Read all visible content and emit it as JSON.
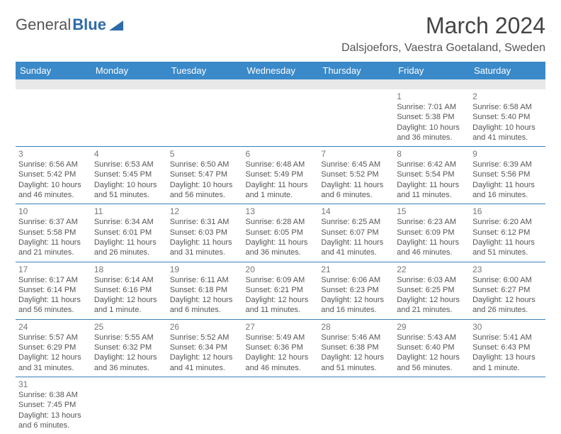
{
  "logo": {
    "text1": "General",
    "text2": "Blue"
  },
  "title": "March 2024",
  "location": "Dalsjoefors, Vaestra Goetaland, Sweden",
  "colors": {
    "header_bg": "#3a89c9",
    "header_text": "#ffffff",
    "cell_border": "#3a7fb5",
    "spacer_bg": "#e8e8e8",
    "daynum": "#777777",
    "info_text": "#555555",
    "logo_gray": "#555555",
    "logo_blue": "#2d6aa8"
  },
  "weekdays": [
    "Sunday",
    "Monday",
    "Tuesday",
    "Wednesday",
    "Thursday",
    "Friday",
    "Saturday"
  ],
  "weeks": [
    [
      null,
      null,
      null,
      null,
      null,
      {
        "n": "1",
        "sr": "7:01 AM",
        "ss": "5:38 PM",
        "dl": "10 hours and 36 minutes."
      },
      {
        "n": "2",
        "sr": "6:58 AM",
        "ss": "5:40 PM",
        "dl": "10 hours and 41 minutes."
      }
    ],
    [
      {
        "n": "3",
        "sr": "6:56 AM",
        "ss": "5:42 PM",
        "dl": "10 hours and 46 minutes."
      },
      {
        "n": "4",
        "sr": "6:53 AM",
        "ss": "5:45 PM",
        "dl": "10 hours and 51 minutes."
      },
      {
        "n": "5",
        "sr": "6:50 AM",
        "ss": "5:47 PM",
        "dl": "10 hours and 56 minutes."
      },
      {
        "n": "6",
        "sr": "6:48 AM",
        "ss": "5:49 PM",
        "dl": "11 hours and 1 minute."
      },
      {
        "n": "7",
        "sr": "6:45 AM",
        "ss": "5:52 PM",
        "dl": "11 hours and 6 minutes."
      },
      {
        "n": "8",
        "sr": "6:42 AM",
        "ss": "5:54 PM",
        "dl": "11 hours and 11 minutes."
      },
      {
        "n": "9",
        "sr": "6:39 AM",
        "ss": "5:56 PM",
        "dl": "11 hours and 16 minutes."
      }
    ],
    [
      {
        "n": "10",
        "sr": "6:37 AM",
        "ss": "5:58 PM",
        "dl": "11 hours and 21 minutes."
      },
      {
        "n": "11",
        "sr": "6:34 AM",
        "ss": "6:01 PM",
        "dl": "11 hours and 26 minutes."
      },
      {
        "n": "12",
        "sr": "6:31 AM",
        "ss": "6:03 PM",
        "dl": "11 hours and 31 minutes."
      },
      {
        "n": "13",
        "sr": "6:28 AM",
        "ss": "6:05 PM",
        "dl": "11 hours and 36 minutes."
      },
      {
        "n": "14",
        "sr": "6:25 AM",
        "ss": "6:07 PM",
        "dl": "11 hours and 41 minutes."
      },
      {
        "n": "15",
        "sr": "6:23 AM",
        "ss": "6:09 PM",
        "dl": "11 hours and 46 minutes."
      },
      {
        "n": "16",
        "sr": "6:20 AM",
        "ss": "6:12 PM",
        "dl": "11 hours and 51 minutes."
      }
    ],
    [
      {
        "n": "17",
        "sr": "6:17 AM",
        "ss": "6:14 PM",
        "dl": "11 hours and 56 minutes."
      },
      {
        "n": "18",
        "sr": "6:14 AM",
        "ss": "6:16 PM",
        "dl": "12 hours and 1 minute."
      },
      {
        "n": "19",
        "sr": "6:11 AM",
        "ss": "6:18 PM",
        "dl": "12 hours and 6 minutes."
      },
      {
        "n": "20",
        "sr": "6:09 AM",
        "ss": "6:21 PM",
        "dl": "12 hours and 11 minutes."
      },
      {
        "n": "21",
        "sr": "6:06 AM",
        "ss": "6:23 PM",
        "dl": "12 hours and 16 minutes."
      },
      {
        "n": "22",
        "sr": "6:03 AM",
        "ss": "6:25 PM",
        "dl": "12 hours and 21 minutes."
      },
      {
        "n": "23",
        "sr": "6:00 AM",
        "ss": "6:27 PM",
        "dl": "12 hours and 26 minutes."
      }
    ],
    [
      {
        "n": "24",
        "sr": "5:57 AM",
        "ss": "6:29 PM",
        "dl": "12 hours and 31 minutes."
      },
      {
        "n": "25",
        "sr": "5:55 AM",
        "ss": "6:32 PM",
        "dl": "12 hours and 36 minutes."
      },
      {
        "n": "26",
        "sr": "5:52 AM",
        "ss": "6:34 PM",
        "dl": "12 hours and 41 minutes."
      },
      {
        "n": "27",
        "sr": "5:49 AM",
        "ss": "6:36 PM",
        "dl": "12 hours and 46 minutes."
      },
      {
        "n": "28",
        "sr": "5:46 AM",
        "ss": "6:38 PM",
        "dl": "12 hours and 51 minutes."
      },
      {
        "n": "29",
        "sr": "5:43 AM",
        "ss": "6:40 PM",
        "dl": "12 hours and 56 minutes."
      },
      {
        "n": "30",
        "sr": "5:41 AM",
        "ss": "6:43 PM",
        "dl": "13 hours and 1 minute."
      }
    ],
    [
      {
        "n": "31",
        "sr": "6:38 AM",
        "ss": "7:45 PM",
        "dl": "13 hours and 6 minutes."
      },
      null,
      null,
      null,
      null,
      null,
      null
    ]
  ],
  "labels": {
    "sunrise": "Sunrise:",
    "sunset": "Sunset:",
    "daylight": "Daylight:"
  }
}
